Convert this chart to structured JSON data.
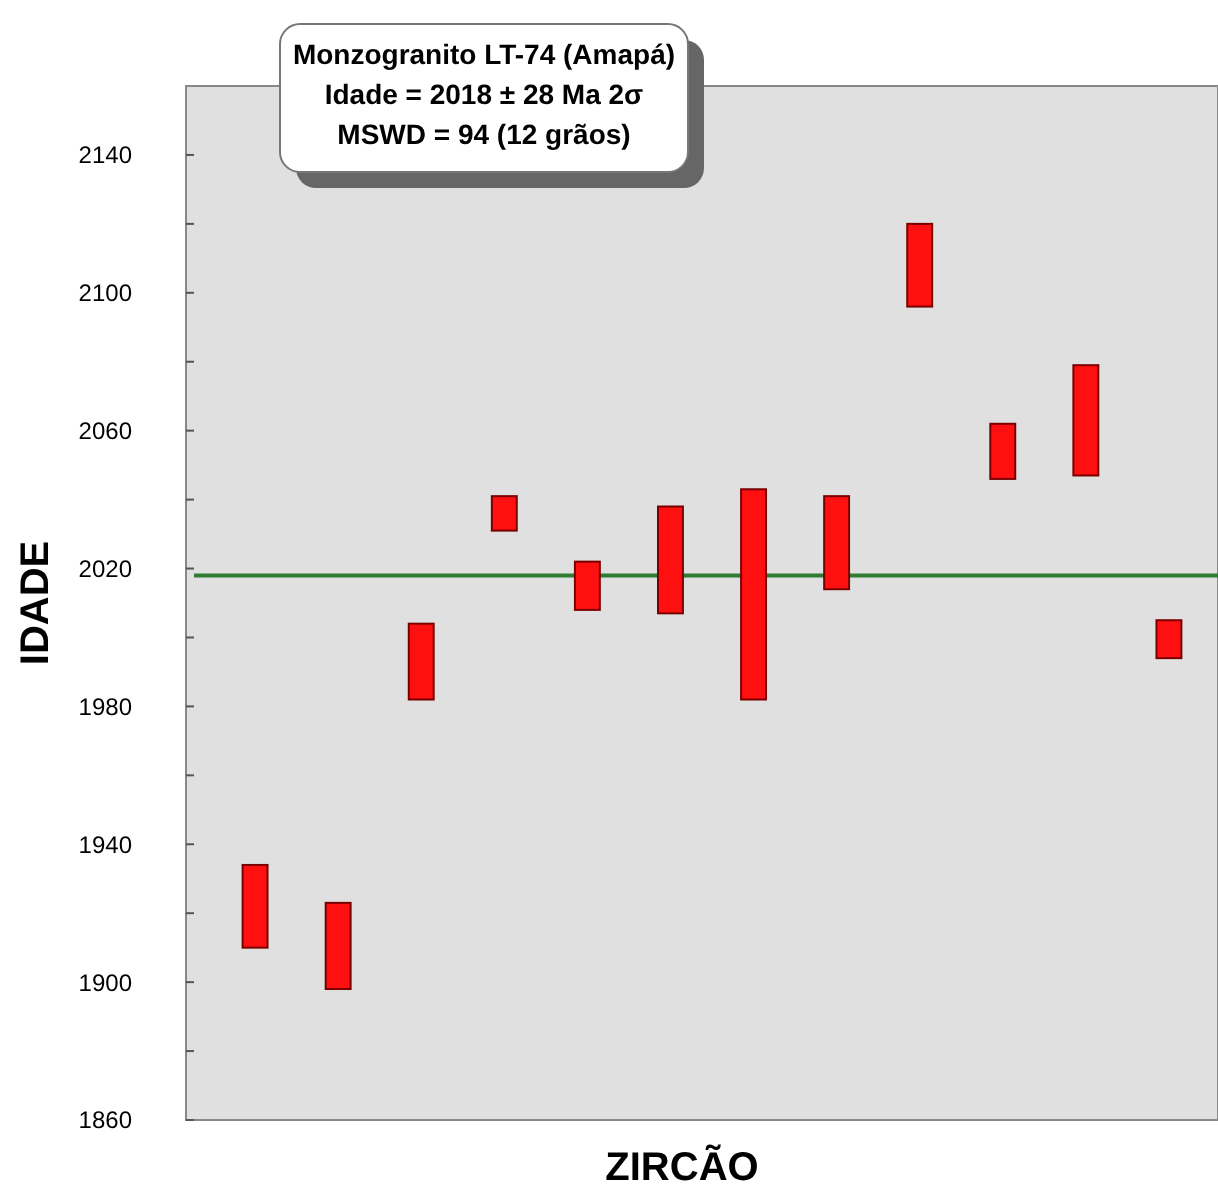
{
  "chart_data": {
    "type": "bar",
    "title": "Monzogranito LT-74 (Amapá)",
    "annotations": [
      "Idade = 2018 ± 28  Ma 2σ",
      "MSWD = 94 (12 grãos)"
    ],
    "xlabel": "ZIRCÃO",
    "ylabel": "IDADE",
    "categories": [
      null,
      null,
      null,
      null,
      null,
      null,
      null,
      null,
      null,
      null,
      null,
      null
    ],
    "base": [
      1910,
      1898,
      1982,
      2031,
      2008,
      2007,
      1982,
      2014,
      2096,
      2046,
      2047,
      1994
    ],
    "values": [
      24,
      25,
      22,
      10,
      14,
      31,
      61,
      27,
      24,
      16,
      32,
      11
    ],
    "color": "#ff1010",
    "ylim": [
      1860,
      2160
    ],
    "yticks": [
      1860,
      {
        "value": 1880,
        "label": null
      },
      1900,
      {
        "value": 1920,
        "label": null
      },
      1940,
      {
        "value": 1960,
        "label": null
      },
      1980,
      {
        "value": 2000,
        "label": null
      },
      2020,
      {
        "value": 2040,
        "label": null
      },
      2060,
      {
        "value": 2080,
        "label": null
      },
      2100,
      {
        "value": 2120,
        "label": null
      },
      2140
    ],
    "ref_lines": [
      {
        "axis": "y",
        "value": 2018,
        "color": "#2e7d32"
      }
    ],
    "grid": false
  }
}
